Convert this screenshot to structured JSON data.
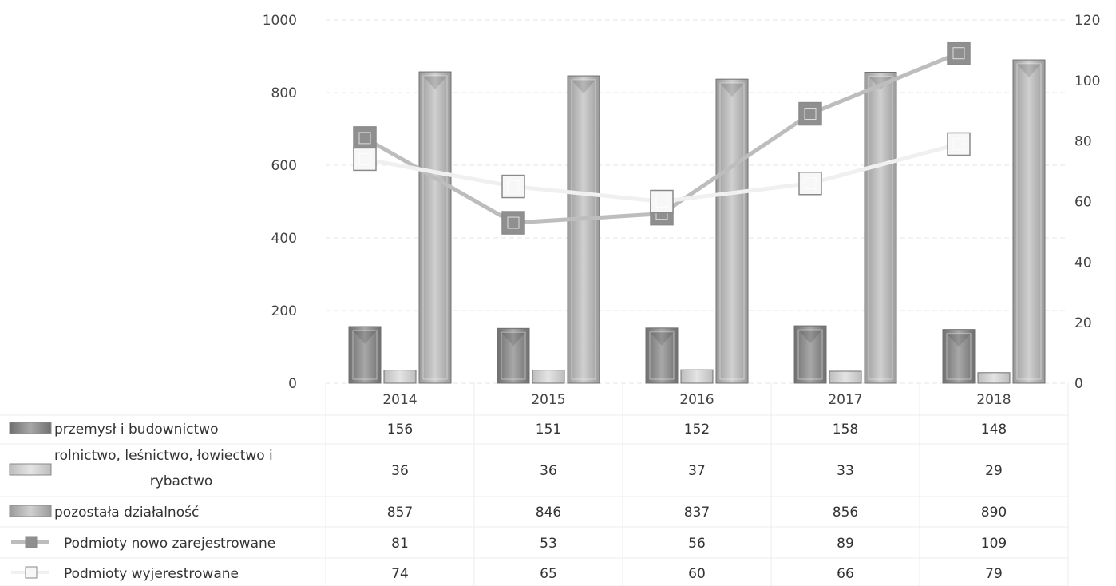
{
  "chart_data": {
    "type": "bar",
    "title": "",
    "categories": [
      "2014",
      "2015",
      "2016",
      "2017",
      "2018"
    ],
    "y_left": {
      "min": 0,
      "max": 1000,
      "ticks": [
        "0",
        "200",
        "400",
        "600",
        "800",
        "1000"
      ]
    },
    "y_right": {
      "min": 0,
      "max": 120,
      "ticks": [
        "0",
        "20",
        "40",
        "60",
        "80",
        "100",
        "120"
      ]
    },
    "grid": true,
    "legend": "data-table-below",
    "series": [
      {
        "name": "przemysł i budownictwo",
        "kind": "bar",
        "axis": "left",
        "color": "#8c8c8c",
        "values": [
          156,
          151,
          152,
          158,
          148
        ]
      },
      {
        "name_lines": [
          "rolnictwo, leśnictwo, łowiectwo i",
          "rybactwo"
        ],
        "kind": "bar",
        "axis": "left",
        "color": "#c8c8c8",
        "values": [
          36,
          36,
          37,
          33,
          29
        ]
      },
      {
        "name": "pozostała działalność",
        "kind": "bar",
        "axis": "left",
        "color": "#b3b3b3",
        "values": [
          857,
          846,
          837,
          856,
          890
        ]
      },
      {
        "name": "Podmioty nowo zarejestrowane",
        "kind": "line",
        "axis": "right",
        "color": "#bdbdbd",
        "values": [
          81,
          53,
          56,
          89,
          109
        ]
      },
      {
        "name": "Podmioty wyjerestrowane",
        "kind": "line",
        "axis": "right",
        "color": "#ececec",
        "values": [
          74,
          65,
          60,
          66,
          79
        ]
      }
    ]
  }
}
